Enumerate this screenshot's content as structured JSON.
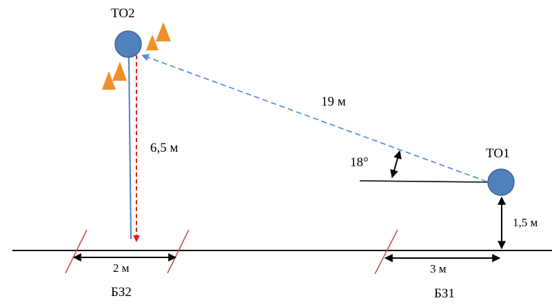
{
  "labels": {
    "to2": "ТО2",
    "to1": "ТО1",
    "dist_19": "19 м",
    "dist_6_5": "6,5 м",
    "angle_18": "18°",
    "dist_1_5": "1,5 м",
    "dist_2": "2 м",
    "dist_3": "3 м",
    "bz2": "БЗ2",
    "bz1": "БЗ1"
  },
  "colors": {
    "circle_fill": "#4f81bd",
    "circle_stroke": "#3a6494",
    "dashed_blue": "#5b8fcf",
    "solid_blue": "#4a7ec2",
    "dashed_red": "#e51c1c",
    "slash_red": "#c0504d",
    "cone": "#f0902a",
    "black": "#000000"
  }
}
